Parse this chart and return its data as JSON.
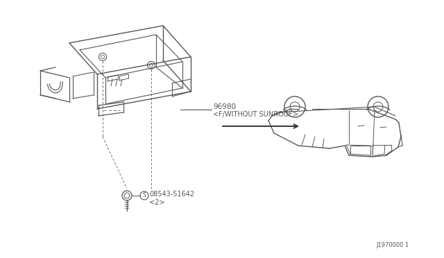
{
  "background_color": "#ffffff",
  "line_color": "#555555",
  "text_color": "#555555",
  "part_number_console": "96980",
  "part_label_console": "<F/WITHOUT SUNROOF>",
  "part_number_screw": "08543-51642",
  "part_label_screw": "<2>",
  "diagram_code": "J1970000 1",
  "fig_width": 6.4,
  "fig_height": 3.72,
  "dpi": 100
}
